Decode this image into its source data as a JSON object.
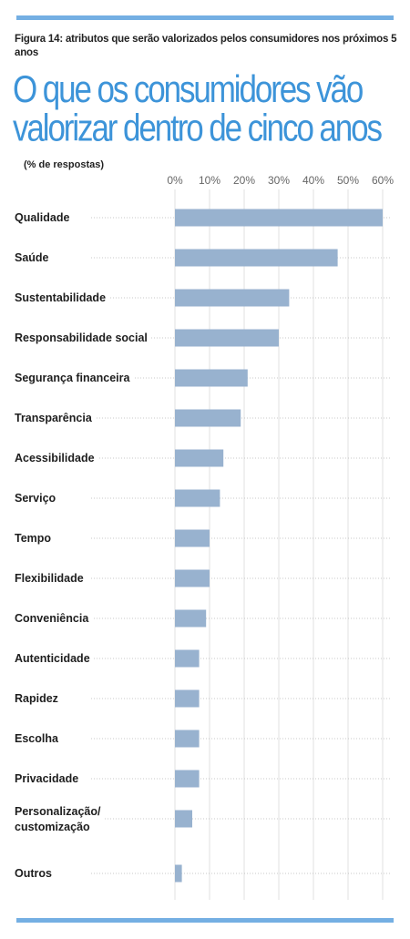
{
  "figure_label": "Figura 14: atributos que serão valorizados pelos consumidores nos próximos 5 anos",
  "title": "O que os consumidores vão valorizar dentro de cinco anos",
  "unit_label": "(% de respostas)",
  "colors": {
    "bar": "#98b2cf",
    "accent": "#74afe3",
    "title": "#3d94d9"
  },
  "chart_data": {
    "type": "bar",
    "orientation": "horizontal",
    "title": "O que os consumidores vão valorizar dentro de cinco anos",
    "ylabel": "(% de respostas)",
    "xlim": [
      0,
      60
    ],
    "x_ticks": [
      "0%",
      "10%",
      "20%",
      "30%",
      "40%",
      "50%",
      "60%"
    ],
    "grid": true,
    "categories": [
      "Qualidade",
      "Saúde",
      "Sustentabilidade",
      "Responsabilidade social",
      "Segurança financeira",
      "Transparência",
      "Acessibilidade",
      "Serviço",
      "Tempo",
      "Flexibilidade",
      "Conveniência",
      "Autenticidade",
      "Rapidez",
      "Escolha",
      "Privacidade",
      "Personalização/ customização",
      "Outros"
    ],
    "values": [
      60,
      47,
      33,
      30,
      21,
      19,
      14,
      13,
      10,
      10,
      9,
      7,
      7,
      7,
      7,
      5,
      2
    ]
  }
}
